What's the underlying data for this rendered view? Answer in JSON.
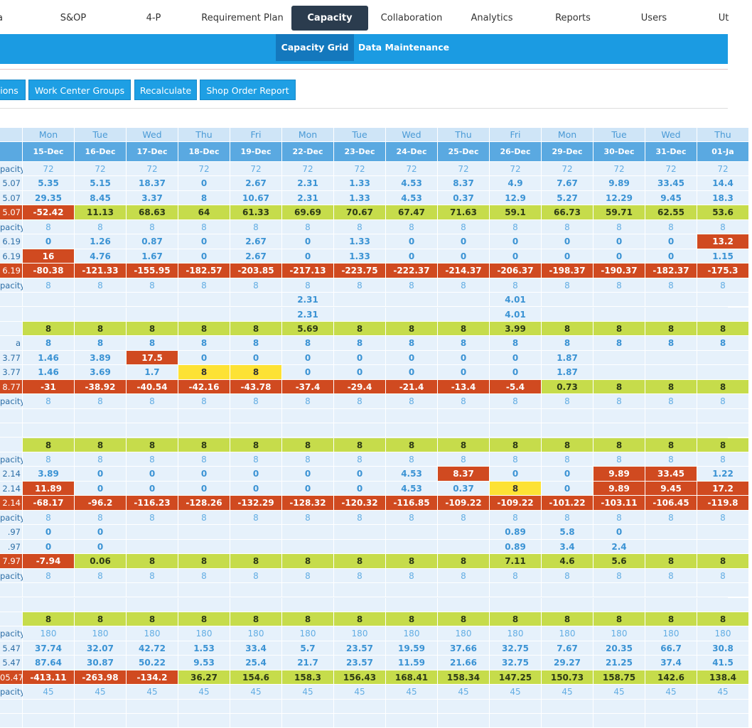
{
  "nav": {
    "tabs": [
      "a",
      "S&OP",
      "4-P",
      "Requirement Plan",
      "Capacity",
      "Collaboration",
      "Analytics",
      "Reports",
      "Users",
      "Ut"
    ],
    "active": 4
  },
  "subnav": {
    "tabs": [
      "Capacity Grid",
      "Data Maintenance"
    ],
    "active": 0
  },
  "toolbar": {
    "buttons": [
      "ions",
      "Work Center Groups",
      "Recalculate",
      "Shop Order Report"
    ]
  },
  "table": {
    "days": [
      "Mon",
      "Tue",
      "Wed",
      "Thu",
      "Fri",
      "Mon",
      "Tue",
      "Wed",
      "Thu",
      "Fri",
      "Mon",
      "Tue",
      "Wed",
      "Thu"
    ],
    "dates": [
      "15-Dec",
      "16-Dec",
      "17-Dec",
      "18-Dec",
      "19-Dec",
      "22-Dec",
      "23-Dec",
      "24-Dec",
      "25-Dec",
      "26-Dec",
      "29-Dec",
      "30-Dec",
      "31-Dec",
      "01-Ja"
    ],
    "rows": [
      {
        "label": "pacity",
        "colors": "---------------",
        "cells": [
          "72",
          "72",
          "72",
          "72",
          "72",
          "72",
          "72",
          "72",
          "72",
          "72",
          "72",
          "72",
          "72",
          "72"
        ]
      },
      {
        "label": "5.07",
        "colors": "---------------",
        "cells": [
          "5.35",
          "5.15",
          "18.37",
          "0",
          "2.67",
          "2.31",
          "1.33",
          "4.53",
          "8.37",
          "4.9",
          "7.67",
          "9.89",
          "33.45",
          "14.4"
        ]
      },
      {
        "label": "5.07",
        "colors": "---------------",
        "cells": [
          "29.35",
          "8.45",
          "3.37",
          "8",
          "10.67",
          "2.31",
          "1.33",
          "4.53",
          "0.37",
          "12.9",
          "5.27",
          "12.29",
          "9.45",
          "18.3"
        ]
      },
      {
        "label": "5.07",
        "colors": "rrggggggggggggg",
        "cells": [
          "-52.42",
          "11.13",
          "68.63",
          "64",
          "61.33",
          "69.69",
          "70.67",
          "67.47",
          "71.63",
          "59.1",
          "66.73",
          "59.71",
          "62.55",
          "53.6"
        ]
      },
      {
        "label": "pacity",
        "colors": "---------------",
        "cells": [
          "8",
          "8",
          "8",
          "8",
          "8",
          "8",
          "8",
          "8",
          "8",
          "8",
          "8",
          "8",
          "8",
          "8"
        ]
      },
      {
        "label": "6.19",
        "colors": "--------------r",
        "cells": [
          "0",
          "1.26",
          "0.87",
          "0",
          "2.67",
          "0",
          "1.33",
          "0",
          "0",
          "0",
          "0",
          "0",
          "0",
          "13.2"
        ]
      },
      {
        "label": "6.19",
        "colors": "-r-------------",
        "cells": [
          "16",
          "4.76",
          "1.67",
          "0",
          "2.67",
          "0",
          "1.33",
          "0",
          "0",
          "0",
          "0",
          "0",
          "0",
          "1.15"
        ]
      },
      {
        "label": "6.19",
        "colors": "rrrrrrrrrrrrrrr",
        "cells": [
          "-80.38",
          "-121.33",
          "-155.95",
          "-182.57",
          "-203.85",
          "-217.13",
          "-223.75",
          "-222.37",
          "-214.37",
          "-206.37",
          "-198.37",
          "-190.37",
          "-182.37",
          "-175.3"
        ]
      },
      {
        "label": "pacity",
        "colors": "---------------",
        "cells": [
          "8",
          "8",
          "8",
          "8",
          "8",
          "8",
          "8",
          "8",
          "8",
          "8",
          "8",
          "8",
          "8",
          "8"
        ]
      },
      {
        "label": null,
        "colors": "---------------",
        "cells": [
          null,
          null,
          null,
          null,
          null,
          "2.31",
          null,
          null,
          null,
          "4.01",
          null,
          null,
          null,
          null
        ]
      },
      {
        "label": null,
        "colors": "---------------",
        "cells": [
          null,
          null,
          null,
          null,
          null,
          "2.31",
          null,
          null,
          null,
          "4.01",
          null,
          null,
          null,
          null
        ]
      },
      {
        "label": null,
        "colors": "-gggggggggggggg",
        "cells": [
          "8",
          "8",
          "8",
          "8",
          "8",
          "5.69",
          "8",
          "8",
          "8",
          "3.99",
          "8",
          "8",
          "8",
          "8"
        ]
      },
      {
        "label": "a",
        "colors": "---------------",
        "cells": [
          "8",
          "8",
          "8",
          "8",
          "8",
          "8",
          "8",
          "8",
          "8",
          "8",
          "8",
          "8",
          "8",
          "8"
        ]
      },
      {
        "label": "3.77",
        "colors": "---r-----------",
        "cells": [
          "1.46",
          "3.89",
          "17.5",
          "0",
          "0",
          "0",
          "0",
          "0",
          "0",
          "0",
          "1.87",
          null,
          null,
          null
        ]
      },
      {
        "label": "3.77",
        "colors": "----yy---------",
        "cells": [
          "1.46",
          "3.69",
          "1.7",
          "8",
          "8",
          "0",
          "0",
          "0",
          "0",
          "0",
          "1.87",
          null,
          null,
          null
        ]
      },
      {
        "label": "8.77",
        "colors": "rrrrrrrrrrrgggg",
        "cells": [
          "-31",
          "-38.92",
          "-40.54",
          "-42.16",
          "-43.78",
          "-37.4",
          "-29.4",
          "-21.4",
          "-13.4",
          "-5.4",
          "0.73",
          "8",
          "8",
          "8"
        ]
      },
      {
        "label": "pacity",
        "colors": "---------------",
        "cells": [
          "8",
          "8",
          "8",
          "8",
          "8",
          "8",
          "8",
          "8",
          "8",
          "8",
          "8",
          "8",
          "8",
          "8"
        ]
      },
      {
        "label": null,
        "colors": "---------------",
        "cells": [
          null,
          null,
          null,
          null,
          null,
          null,
          null,
          null,
          null,
          null,
          null,
          null,
          null,
          null
        ]
      },
      {
        "label": null,
        "colors": "---------------",
        "cells": [
          null,
          null,
          null,
          null,
          null,
          null,
          null,
          null,
          null,
          null,
          null,
          null,
          null,
          null
        ]
      },
      {
        "label": null,
        "colors": "-gggggggggggggg",
        "cells": [
          "8",
          "8",
          "8",
          "8",
          "8",
          "8",
          "8",
          "8",
          "8",
          "8",
          "8",
          "8",
          "8",
          "8"
        ]
      },
      {
        "label": "pacity",
        "colors": "---------------",
        "cells": [
          "8",
          "8",
          "8",
          "8",
          "8",
          "8",
          "8",
          "8",
          "8",
          "8",
          "8",
          "8",
          "8",
          "8"
        ]
      },
      {
        "label": "2.14",
        "colors": "---------r--rr-",
        "cells": [
          "3.89",
          "0",
          "0",
          "0",
          "0",
          "0",
          "0",
          "4.53",
          "8.37",
          "0",
          "0",
          "9.89",
          "33.45",
          "1.22"
        ]
      },
      {
        "label": "2.14",
        "colors": "-r--------y-rrr",
        "cells": [
          "11.89",
          "0",
          "0",
          "0",
          "0",
          "0",
          "0",
          "4.53",
          "0.37",
          "8",
          "0",
          "9.89",
          "9.45",
          "17.2"
        ]
      },
      {
        "label": "2.14",
        "colors": "rrrrrrrrrrrrrrr",
        "cells": [
          "-68.17",
          "-96.2",
          "-116.23",
          "-128.26",
          "-132.29",
          "-128.32",
          "-120.32",
          "-116.85",
          "-109.22",
          "-109.22",
          "-101.22",
          "-103.11",
          "-106.45",
          "-119.8"
        ]
      },
      {
        "label": "pacity",
        "colors": "---------------",
        "cells": [
          "8",
          "8",
          "8",
          "8",
          "8",
          "8",
          "8",
          "8",
          "8",
          "8",
          "8",
          "8",
          "8",
          "8"
        ]
      },
      {
        "label": ".97",
        "colors": "---------------",
        "cells": [
          "0",
          "0",
          null,
          null,
          null,
          null,
          null,
          null,
          null,
          "0.89",
          "5.8",
          "0",
          null,
          null
        ]
      },
      {
        "label": ".97",
        "colors": "---------------",
        "cells": [
          "0",
          "0",
          null,
          null,
          null,
          null,
          null,
          null,
          null,
          "0.89",
          "3.4",
          "2.4",
          null,
          null
        ]
      },
      {
        "label": "7.97",
        "colors": "rrggggggggggggg",
        "cells": [
          "-7.94",
          "0.06",
          "8",
          "8",
          "8",
          "8",
          "8",
          "8",
          "8",
          "7.11",
          "4.6",
          "5.6",
          "8",
          "8"
        ]
      },
      {
        "label": "pacity",
        "colors": "---------------",
        "cells": [
          "8",
          "8",
          "8",
          "8",
          "8",
          "8",
          "8",
          "8",
          "8",
          "8",
          "8",
          "8",
          "8",
          "8"
        ]
      },
      {
        "label": null,
        "colors": "---------------",
        "cells": [
          null,
          null,
          null,
          null,
          null,
          null,
          null,
          null,
          null,
          null,
          null,
          null,
          null,
          null
        ]
      },
      {
        "label": null,
        "colors": "---------------",
        "cells": [
          null,
          null,
          null,
          null,
          null,
          null,
          null,
          null,
          null,
          null,
          null,
          null,
          null,
          null
        ]
      },
      {
        "label": null,
        "colors": "-gggggggggggggg",
        "cells": [
          "8",
          "8",
          "8",
          "8",
          "8",
          "8",
          "8",
          "8",
          "8",
          "8",
          "8",
          "8",
          "8",
          "8"
        ]
      },
      {
        "label": "pacity",
        "colors": "---------------",
        "cells": [
          "180",
          "180",
          "180",
          "180",
          "180",
          "180",
          "180",
          "180",
          "180",
          "180",
          "180",
          "180",
          "180",
          "180"
        ]
      },
      {
        "label": "5.47",
        "colors": "---------------",
        "cells": [
          "37.74",
          "32.07",
          "42.72",
          "1.53",
          "33.4",
          "5.7",
          "23.57",
          "19.59",
          "37.66",
          "32.75",
          "7.67",
          "20.35",
          "66.7",
          "30.8"
        ]
      },
      {
        "label": "5.47",
        "colors": "---------------",
        "cells": [
          "87.64",
          "30.87",
          "50.22",
          "9.53",
          "25.4",
          "21.7",
          "23.57",
          "11.59",
          "21.66",
          "32.75",
          "29.27",
          "21.25",
          "37.4",
          "41.5"
        ]
      },
      {
        "label": "05.47",
        "colors": "rrrrggggggggggg",
        "cells": [
          "-413.11",
          "-263.98",
          "-134.2",
          "36.27",
          "154.6",
          "158.3",
          "156.43",
          "168.41",
          "158.34",
          "147.25",
          "150.73",
          "158.75",
          "142.6",
          "138.4"
        ]
      },
      {
        "label": "pacity",
        "colors": "---------------",
        "cells": [
          "45",
          "45",
          "45",
          "45",
          "45",
          "45",
          "45",
          "45",
          "45",
          "45",
          "45",
          "45",
          "45",
          "45"
        ]
      },
      {
        "label": null,
        "colors": "---------------",
        "cells": [
          null,
          null,
          null,
          null,
          null,
          null,
          null,
          null,
          null,
          null,
          null,
          null,
          null,
          null
        ]
      },
      {
        "label": null,
        "colors": "---------------",
        "cells": [
          null,
          null,
          null,
          null,
          null,
          null,
          null,
          null,
          null,
          null,
          null,
          null,
          null,
          null
        ]
      }
    ]
  }
}
